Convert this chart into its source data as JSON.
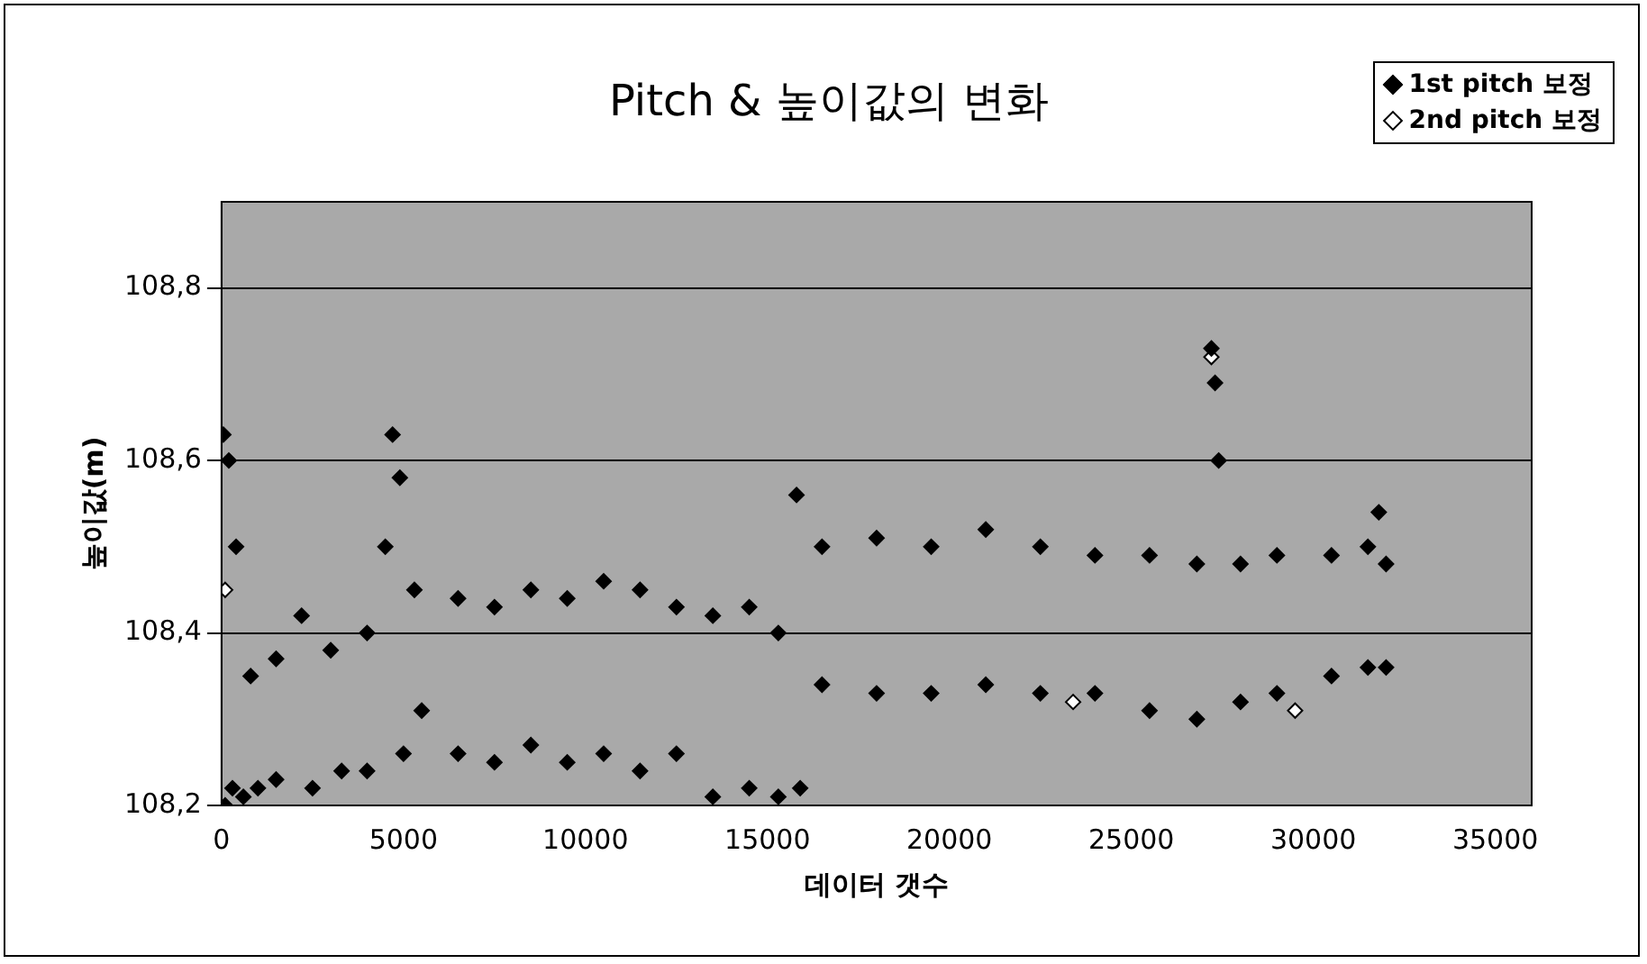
{
  "chart_data": {
    "type": "scatter",
    "title": "Pitch & 높이값의 변화",
    "xlabel": "데이터 갯수",
    "ylabel": "높이값(m)",
    "xlim": [
      0,
      36000
    ],
    "xticks": [
      0,
      5000,
      10000,
      15000,
      20000,
      25000,
      30000,
      35000
    ],
    "ylim": [
      108.2,
      108.9
    ],
    "yticks": [
      {
        "value": 108.2,
        "label": "108,2"
      },
      {
        "value": 108.4,
        "label": "108,4"
      },
      {
        "value": 108.6,
        "label": "108,6"
      },
      {
        "value": 108.8,
        "label": "108,8"
      }
    ],
    "grid": "y",
    "legend": "top right",
    "marker": "diamond",
    "series": [
      {
        "name": "1st pitch 보정",
        "color": "#000000",
        "x": [
          50,
          100,
          200,
          300,
          400,
          600,
          800,
          1000,
          1500,
          1500,
          2200,
          2500,
          3000,
          3300,
          4000,
          4000,
          4500,
          4700,
          4900,
          5000,
          5300,
          5500,
          6500,
          6500,
          7500,
          7500,
          8500,
          8500,
          9500,
          9500,
          10500,
          10500,
          11500,
          11500,
          12500,
          12500,
          13500,
          13500,
          14500,
          14500,
          15300,
          15300,
          15800,
          15900,
          16500,
          16500,
          18000,
          18000,
          19500,
          19500,
          21000,
          21000,
          22500,
          22500,
          24000,
          24000,
          25500,
          25500,
          26800,
          26800,
          27200,
          27300,
          27400,
          28000,
          28000,
          29000,
          29000,
          30500,
          30500,
          31500,
          31500,
          31800,
          32000,
          32000
        ],
        "values": [
          108.63,
          108.2,
          108.6,
          108.22,
          108.5,
          108.21,
          108.35,
          108.22,
          108.37,
          108.23,
          108.42,
          108.22,
          108.38,
          108.24,
          108.4,
          108.24,
          108.5,
          108.63,
          108.58,
          108.26,
          108.45,
          108.31,
          108.44,
          108.26,
          108.43,
          108.25,
          108.45,
          108.27,
          108.44,
          108.25,
          108.46,
          108.26,
          108.45,
          108.24,
          108.43,
          108.26,
          108.42,
          108.21,
          108.43,
          108.22,
          108.4,
          108.21,
          108.56,
          108.22,
          108.5,
          108.34,
          108.51,
          108.33,
          108.5,
          108.33,
          108.52,
          108.34,
          108.5,
          108.33,
          108.49,
          108.33,
          108.49,
          108.31,
          108.48,
          108.3,
          108.73,
          108.69,
          108.6,
          108.48,
          108.32,
          108.49,
          108.33,
          108.49,
          108.35,
          108.5,
          108.36,
          108.54,
          108.48,
          108.36
        ]
      },
      {
        "name": "2nd pitch 보정",
        "color": "#000000",
        "x": [
          100,
          23400,
          27200,
          29500
        ],
        "values": [
          108.45,
          108.32,
          108.72,
          108.31
        ]
      }
    ]
  }
}
